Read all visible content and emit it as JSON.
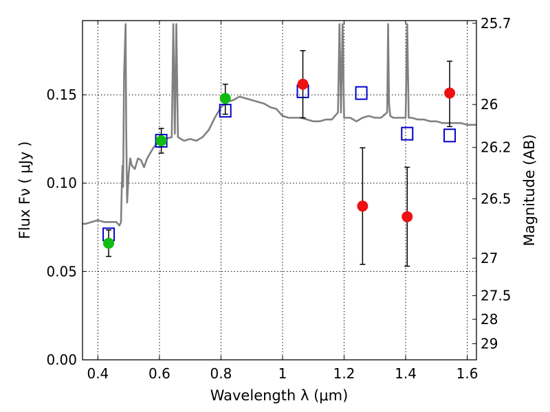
{
  "chart_data": {
    "type": "scatter",
    "xlabel": "Wavelength  λ (μm)",
    "ylabel": "Flux  Fν  ( μJy )",
    "y2label": "Magnitude (AB)",
    "xlim": [
      0.35,
      1.63
    ],
    "ylim": [
      0.0,
      0.192
    ],
    "x_ticks": [
      0.4,
      0.6,
      0.8,
      1.0,
      1.2,
      1.4,
      1.6
    ],
    "x_tick_labels": [
      "0.4",
      "0.6",
      "0.8",
      "1",
      "1.2",
      "1.4",
      "1.6"
    ],
    "y_ticks": [
      0.0,
      0.05,
      0.1,
      0.15
    ],
    "y_tick_labels": [
      "0.00",
      "0.05",
      "0.10",
      "0.15"
    ],
    "y2_ticks": [
      {
        "label": "25.7",
        "flux": 0.1905
      },
      {
        "label": "26",
        "flux": 0.1445
      },
      {
        "label": "26.2",
        "flux": 0.1202
      },
      {
        "label": "26.5",
        "flux": 0.0912
      },
      {
        "label": "27",
        "flux": 0.0575
      },
      {
        "label": "27.5",
        "flux": 0.0363
      },
      {
        "label": "28",
        "flux": 0.0229
      },
      {
        "label": "29",
        "flux": 0.0091
      }
    ],
    "grid": true,
    "series": [
      {
        "kind": "line",
        "color": "#808080",
        "x": [
          0.35,
          0.36,
          0.38,
          0.4,
          0.42,
          0.44,
          0.46,
          0.47,
          0.475,
          0.478,
          0.48,
          0.482,
          0.485,
          0.49,
          0.492,
          0.495,
          0.5,
          0.505,
          0.51,
          0.52,
          0.53,
          0.54,
          0.55,
          0.56,
          0.58,
          0.6,
          0.62,
          0.64,
          0.645,
          0.65,
          0.655,
          0.66,
          0.68,
          0.7,
          0.72,
          0.74,
          0.76,
          0.78,
          0.8,
          0.82,
          0.84,
          0.86,
          0.88,
          0.9,
          0.92,
          0.94,
          0.96,
          0.98,
          1.0,
          1.02,
          1.04,
          1.06,
          1.08,
          1.1,
          1.12,
          1.14,
          1.16,
          1.18,
          1.185,
          1.19,
          1.195,
          1.2,
          1.22,
          1.24,
          1.26,
          1.28,
          1.3,
          1.32,
          1.34,
          1.343,
          1.346,
          1.35,
          1.36,
          1.38,
          1.4,
          1.405,
          1.41,
          1.42,
          1.44,
          1.46,
          1.48,
          1.5,
          1.52,
          1.54,
          1.56,
          1.58,
          1.6,
          1.63
        ],
        "y": [
          0.077,
          0.077,
          0.078,
          0.079,
          0.078,
          0.078,
          0.078,
          0.076,
          0.078,
          0.1,
          0.11,
          0.098,
          0.16,
          0.19,
          0.13,
          0.089,
          0.105,
          0.114,
          0.11,
          0.108,
          0.114,
          0.113,
          0.109,
          0.114,
          0.12,
          0.124,
          0.125,
          0.126,
          0.19,
          0.128,
          0.19,
          0.126,
          0.124,
          0.125,
          0.124,
          0.126,
          0.13,
          0.137,
          0.143,
          0.146,
          0.147,
          0.149,
          0.148,
          0.147,
          0.146,
          0.145,
          0.143,
          0.142,
          0.138,
          0.137,
          0.137,
          0.137,
          0.136,
          0.135,
          0.135,
          0.136,
          0.136,
          0.14,
          0.19,
          0.14,
          0.19,
          0.137,
          0.137,
          0.135,
          0.137,
          0.138,
          0.137,
          0.137,
          0.14,
          0.19,
          0.145,
          0.138,
          0.137,
          0.137,
          0.137,
          0.19,
          0.137,
          0.137,
          0.136,
          0.136,
          0.135,
          0.135,
          0.134,
          0.134,
          0.134,
          0.134,
          0.133,
          0.133
        ]
      },
      {
        "kind": "scatter",
        "marker": "square-open",
        "color": "#0000cc",
        "x": [
          0.435,
          0.606,
          0.814,
          1.066,
          1.256,
          1.405,
          1.543
        ],
        "y": [
          0.071,
          0.124,
          0.141,
          0.152,
          0.151,
          0.128,
          0.127
        ]
      },
      {
        "kind": "scatter",
        "marker": "circle",
        "color": "#11bb11",
        "x": [
          0.435,
          0.606,
          0.814
        ],
        "y": [
          0.066,
          0.124,
          0.148
        ],
        "yerr_low": [
          0.0075,
          0.007,
          0.009
        ],
        "yerr_high": [
          0.0075,
          0.007,
          0.008
        ]
      },
      {
        "kind": "scatter",
        "marker": "circle",
        "color": "#ee1111",
        "x": [
          1.066,
          1.26,
          1.405,
          1.543
        ],
        "y": [
          0.156,
          0.087,
          0.081,
          0.151
        ],
        "yerr_low": [
          0.019,
          0.033,
          0.028,
          0.019
        ],
        "yerr_high": [
          0.019,
          0.033,
          0.028,
          0.018
        ]
      }
    ]
  }
}
